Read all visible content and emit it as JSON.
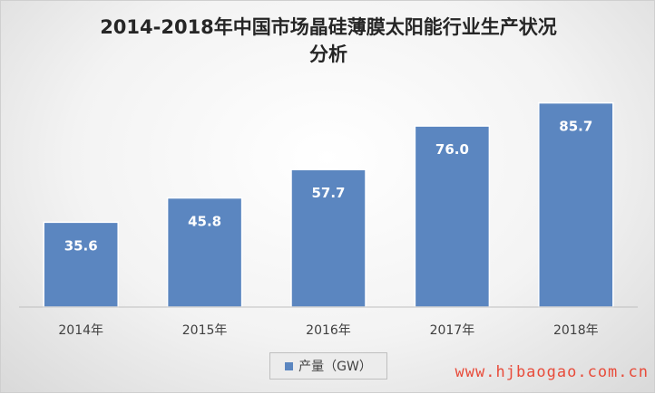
{
  "chart_data": {
    "type": "bar",
    "title_line1": "2014-2018年中国市场晶硅薄膜太阳能行业生产状况",
    "title_line2": "分析",
    "categories": [
      "2014年",
      "2015年",
      "2016年",
      "2017年",
      "2018年"
    ],
    "series": [
      {
        "name": "产量（GW）",
        "values": [
          35.6,
          45.8,
          57.7,
          76.0,
          85.7
        ]
      }
    ],
    "value_labels": [
      "35.6",
      "45.8",
      "57.7",
      "76.0",
      "85.7"
    ],
    "ylim": [
      0,
      100
    ],
    "grid": false,
    "legend_position": "bottom",
    "bar_color": "#5b86c0",
    "bar_edge_color": "#ffffff"
  },
  "watermark": "www.hjbaogao.com.cn"
}
